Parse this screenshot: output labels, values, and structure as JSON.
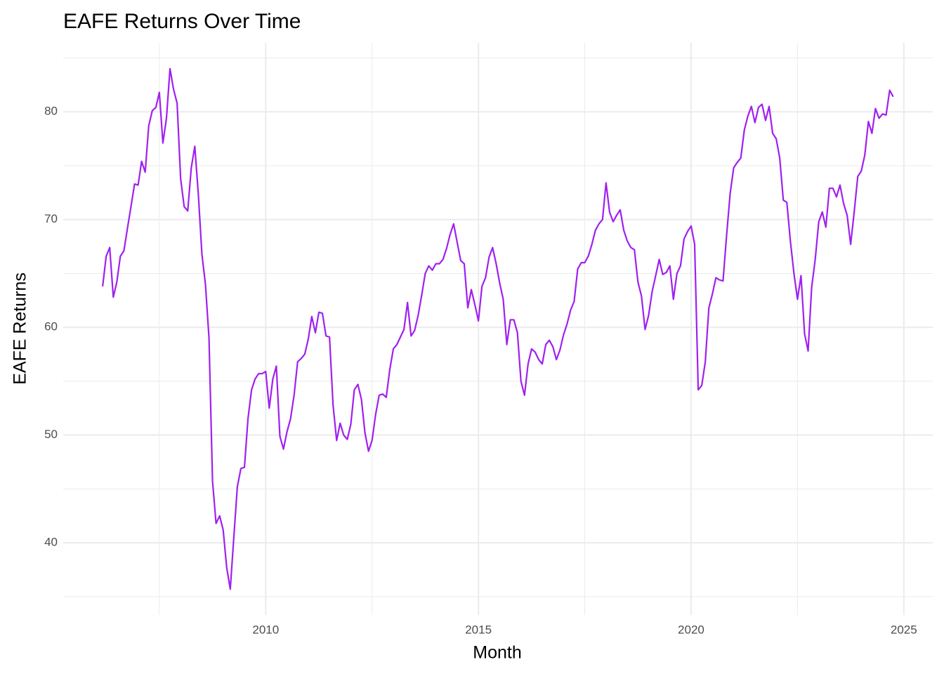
{
  "chart_data": {
    "type": "line",
    "title": "EAFE Returns Over Time",
    "x_label": "Month",
    "y_label": "EAFE Returns",
    "color": "#a020f0",
    "grid": true,
    "xlim": [
      2005.24,
      2025.68
    ],
    "ylim": [
      33.3,
      86.4
    ],
    "xticks": [
      2010,
      2015,
      2020,
      2025
    ],
    "yticks": [
      40,
      50,
      60,
      70,
      80
    ],
    "x": [
      2006.167,
      2006.25,
      2006.333,
      2006.417,
      2006.5,
      2006.583,
      2006.667,
      2006.75,
      2006.833,
      2006.917,
      2007.0,
      2007.083,
      2007.167,
      2007.25,
      2007.333,
      2007.417,
      2007.5,
      2007.583,
      2007.667,
      2007.75,
      2007.833,
      2007.917,
      2008.0,
      2008.083,
      2008.167,
      2008.25,
      2008.333,
      2008.417,
      2008.5,
      2008.583,
      2008.667,
      2008.75,
      2008.833,
      2008.917,
      2009.0,
      2009.083,
      2009.167,
      2009.25,
      2009.333,
      2009.417,
      2009.5,
      2009.583,
      2009.667,
      2009.75,
      2009.833,
      2009.917,
      2010.0,
      2010.083,
      2010.167,
      2010.25,
      2010.333,
      2010.417,
      2010.5,
      2010.583,
      2010.667,
      2010.75,
      2010.833,
      2010.917,
      2011.0,
      2011.083,
      2011.167,
      2011.25,
      2011.333,
      2011.417,
      2011.5,
      2011.583,
      2011.667,
      2011.75,
      2011.833,
      2011.917,
      2012.0,
      2012.083,
      2012.167,
      2012.25,
      2012.333,
      2012.417,
      2012.5,
      2012.583,
      2012.667,
      2012.75,
      2012.833,
      2012.917,
      2013.0,
      2013.083,
      2013.167,
      2013.25,
      2013.333,
      2013.417,
      2013.5,
      2013.583,
      2013.667,
      2013.75,
      2013.833,
      2013.917,
      2014.0,
      2014.083,
      2014.167,
      2014.25,
      2014.333,
      2014.417,
      2014.5,
      2014.583,
      2014.667,
      2014.75,
      2014.833,
      2014.917,
      2015.0,
      2015.083,
      2015.167,
      2015.25,
      2015.333,
      2015.417,
      2015.5,
      2015.583,
      2015.667,
      2015.75,
      2015.833,
      2015.917,
      2016.0,
      2016.083,
      2016.167,
      2016.25,
      2016.333,
      2016.417,
      2016.5,
      2016.583,
      2016.667,
      2016.75,
      2016.833,
      2016.917,
      2017.0,
      2017.083,
      2017.167,
      2017.25,
      2017.333,
      2017.417,
      2017.5,
      2017.583,
      2017.667,
      2017.75,
      2017.833,
      2017.917,
      2018.0,
      2018.083,
      2018.167,
      2018.25,
      2018.333,
      2018.417,
      2018.5,
      2018.583,
      2018.667,
      2018.75,
      2018.833,
      2018.917,
      2019.0,
      2019.083,
      2019.167,
      2019.25,
      2019.333,
      2019.417,
      2019.5,
      2019.583,
      2019.667,
      2019.75,
      2019.833,
      2019.917,
      2020.0,
      2020.083,
      2020.167,
      2020.25,
      2020.333,
      2020.417,
      2020.5,
      2020.583,
      2020.667,
      2020.75,
      2020.833,
      2020.917,
      2021.0,
      2021.083,
      2021.167,
      2021.25,
      2021.333,
      2021.417,
      2021.5,
      2021.583,
      2021.667,
      2021.75,
      2021.833,
      2021.917,
      2022.0,
      2022.083,
      2022.167,
      2022.25,
      2022.333,
      2022.417,
      2022.5,
      2022.583,
      2022.667,
      2022.75,
      2022.833,
      2022.917,
      2023.0,
      2023.083,
      2023.167,
      2023.25,
      2023.333,
      2023.417,
      2023.5,
      2023.583,
      2023.667,
      2023.75,
      2023.833,
      2023.917,
      2024.0,
      2024.083,
      2024.167,
      2024.25,
      2024.333,
      2024.417,
      2024.5,
      2024.583,
      2024.667,
      2024.75
    ],
    "values": [
      63.8,
      66.6,
      67.4,
      62.8,
      64.2,
      66.6,
      67.1,
      69.2,
      71.2,
      73.3,
      73.2,
      75.4,
      74.4,
      78.7,
      80.1,
      80.4,
      81.8,
      77.1,
      79.4,
      84.0,
      82.1,
      80.8,
      73.8,
      71.2,
      70.8,
      74.8,
      76.8,
      72.3,
      66.8,
      64.0,
      59.0,
      45.7,
      41.8,
      42.5,
      41.2,
      37.7,
      35.7,
      40.5,
      45.2,
      46.9,
      47.0,
      51.5,
      54.2,
      55.2,
      55.7,
      55.7,
      55.9,
      52.5,
      55.2,
      56.4,
      49.9,
      48.7,
      50.3,
      51.5,
      53.7,
      56.8,
      57.1,
      57.5,
      58.9,
      61.0,
      59.5,
      61.4,
      61.3,
      59.2,
      59.1,
      52.8,
      49.5,
      51.1,
      50.0,
      49.6,
      51.0,
      54.2,
      54.7,
      53.3,
      50.2,
      48.5,
      49.5,
      51.9,
      53.7,
      53.8,
      53.5,
      56.1,
      58.0,
      58.4,
      59.1,
      59.8,
      62.3,
      59.2,
      59.7,
      61.1,
      63.0,
      65.0,
      65.7,
      65.3,
      65.9,
      65.9,
      66.3,
      67.3,
      68.6,
      69.6,
      67.9,
      66.2,
      65.9,
      61.8,
      63.5,
      62.1,
      60.6,
      63.8,
      64.6,
      66.5,
      67.4,
      65.9,
      64.1,
      62.6,
      58.4,
      60.7,
      60.7,
      59.5,
      55.0,
      53.7,
      56.6,
      58.0,
      57.7,
      57.0,
      56.6,
      58.4,
      58.8,
      58.2,
      57.0,
      57.9,
      59.3,
      60.3,
      61.6,
      62.4,
      65.4,
      66.0,
      66.0,
      66.6,
      67.7,
      69.0,
      69.6,
      70.0,
      73.4,
      70.7,
      69.8,
      70.4,
      70.9,
      69.0,
      68.0,
      67.4,
      67.2,
      64.2,
      62.9,
      59.8,
      61.1,
      63.3,
      64.8,
      66.3,
      64.9,
      65.1,
      65.7,
      62.6,
      65.0,
      65.7,
      68.2,
      68.9,
      69.4,
      67.7,
      54.2,
      54.6,
      56.8,
      61.8,
      63.1,
      64.6,
      64.4,
      64.3,
      68.5,
      72.4,
      74.8,
      75.3,
      75.7,
      78.3,
      79.6,
      80.5,
      79.0,
      80.4,
      80.7,
      79.2,
      80.5,
      78.0,
      77.5,
      75.7,
      71.8,
      71.6,
      68.0,
      65.0,
      62.6,
      64.8,
      59.4,
      57.8,
      63.7,
      66.3,
      69.8,
      70.7,
      69.3,
      72.9,
      72.9,
      72.1,
      73.2,
      71.5,
      70.4,
      67.7,
      70.7,
      74.0,
      74.5,
      76.0,
      79.1,
      78.0,
      80.3,
      79.4,
      79.8,
      79.7,
      82.0,
      81.4
    ]
  }
}
